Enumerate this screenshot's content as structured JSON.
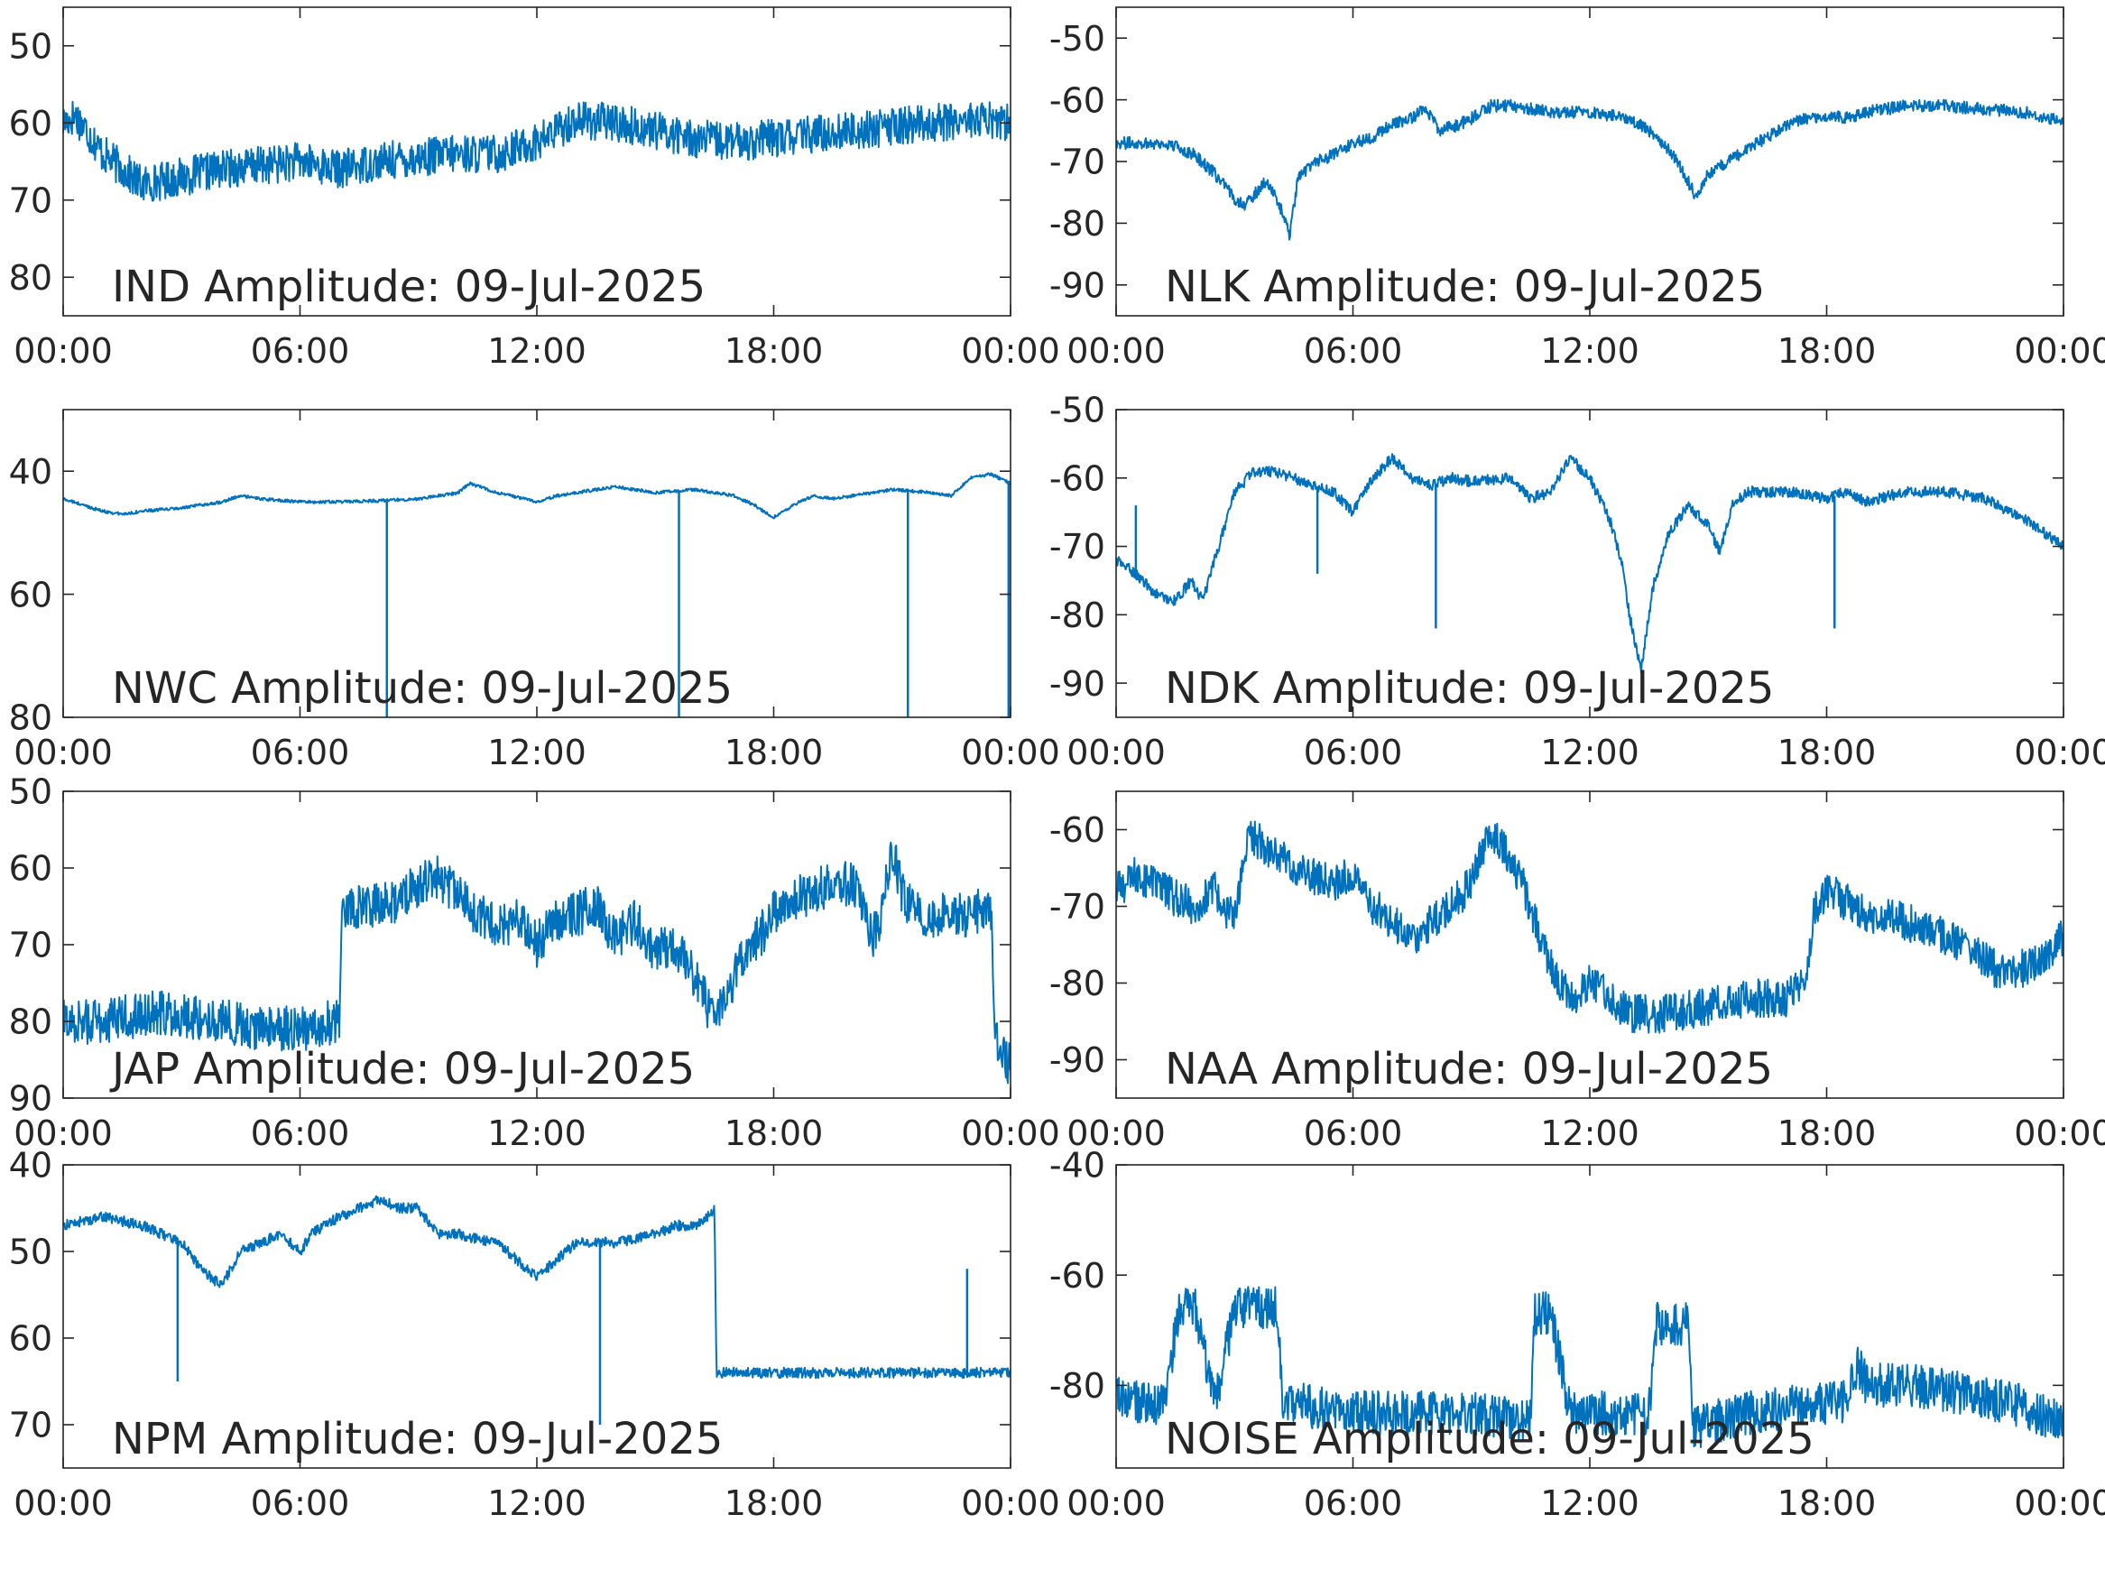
{
  "line_color": "#0072BD",
  "chart_data": [
    {
      "type": "line",
      "title": "IND Amplitude: 09-Jul-2025",
      "xlabel": "",
      "ylabel": "",
      "ylim": [
        -85,
        -45
      ],
      "yticks": [
        -50,
        -60,
        -70,
        -80
      ],
      "ytick_labels": [
        "50",
        "60",
        "70",
        "80"
      ],
      "xticks": [
        "00:00",
        "06:00",
        "12:00",
        "18:00",
        "00:00"
      ],
      "xlim_hours": [
        0,
        24
      ],
      "noise": 2.5,
      "series": [
        {
          "x": [
            0,
            0.3,
            0.6,
            1.0,
            1.5,
            2.0,
            3.0,
            4.0,
            5.0,
            6.0,
            7.0,
            8.0,
            9.0,
            10.0,
            11.0,
            12.0,
            12.5,
            13.0,
            14.0,
            15.0,
            16.0,
            17.0,
            18.0,
            19.0,
            20.0,
            21.0,
            22.0,
            23.0,
            24.0
          ],
          "values": [
            -60,
            -59,
            -61,
            -64,
            -66,
            -68,
            -67,
            -66,
            -65.5,
            -65,
            -66,
            -65,
            -64.5,
            -64,
            -64,
            -62.5,
            -61,
            -59.5,
            -60,
            -61,
            -62,
            -62.5,
            -62,
            -61.5,
            -61,
            -60.5,
            -60,
            -59.5,
            -60
          ]
        }
      ]
    },
    {
      "type": "line",
      "title": "NLK Amplitude: 09-Jul-2025",
      "xlabel": "",
      "ylabel": "",
      "ylim": [
        -95,
        -45
      ],
      "yticks": [
        -50,
        -60,
        -70,
        -80,
        -90
      ],
      "ytick_labels": [
        "-50",
        "-60",
        "-70",
        "-80",
        "-90"
      ],
      "xticks": [
        "00:00",
        "06:00",
        "12:00",
        "18:00",
        "00:00"
      ],
      "xlim_hours": [
        0,
        24
      ],
      "noise": 1.0,
      "series": [
        {
          "x": [
            0,
            0.5,
            1.0,
            1.5,
            2.0,
            2.5,
            3.0,
            3.3,
            3.8,
            4.2,
            4.4,
            4.6,
            5.0,
            5.5,
            6.0,
            6.5,
            7.0,
            7.5,
            7.8,
            8.2,
            8.7,
            9.0,
            9.5,
            10.0,
            11.0,
            12.0,
            13.0,
            13.5,
            14.0,
            14.4,
            14.7,
            15.0,
            15.5,
            16.0,
            16.5,
            17.0,
            17.5,
            18.0,
            18.5,
            19.0,
            20.0,
            21.0,
            22.0,
            23.0,
            24.0
          ],
          "values": [
            -67,
            -67,
            -67,
            -67.5,
            -69,
            -72,
            -76,
            -77,
            -73,
            -78,
            -82,
            -73,
            -70,
            -69,
            -67,
            -66,
            -64,
            -63,
            -61,
            -65,
            -64,
            -63,
            -61,
            -61,
            -62,
            -62,
            -63,
            -65,
            -68,
            -72,
            -76,
            -72,
            -70,
            -68,
            -66,
            -64,
            -63,
            -62.5,
            -63,
            -62,
            -61,
            -61,
            -61.5,
            -62,
            -63.5
          ]
        }
      ]
    },
    {
      "type": "line",
      "title": "NWC Amplitude: 09-Jul-2025",
      "xlabel": "",
      "ylabel": "",
      "ylim": [
        -80,
        -30
      ],
      "yticks": [
        -40,
        -60,
        -80
      ],
      "ytick_labels": [
        "40",
        "60",
        "80"
      ],
      "xticks": [
        "00:00",
        "06:00",
        "12:00",
        "18:00",
        "00:00"
      ],
      "xlim_hours": [
        0,
        24
      ],
      "noise": 0.25,
      "series": [
        {
          "x": [
            0,
            0.5,
            1.0,
            1.5,
            2.0,
            3.0,
            4.0,
            4.5,
            5.0,
            6.0,
            7.0,
            8.0,
            9.0,
            10.0,
            10.3,
            11.0,
            12.0,
            12.5,
            13.0,
            14.0,
            15.0,
            16.0,
            17.0,
            17.5,
            18.0,
            18.5,
            19.0,
            19.5,
            20.0,
            21.0,
            22.0,
            22.5,
            23.0,
            23.5,
            24.0
          ],
          "values": [
            -44.5,
            -45.5,
            -46.5,
            -47,
            -46.5,
            -46,
            -45,
            -44,
            -44.5,
            -45,
            -45,
            -44.8,
            -44.5,
            -43.5,
            -42,
            -43.5,
            -45,
            -44,
            -43.5,
            -42.5,
            -43.5,
            -43,
            -44,
            -45.5,
            -47.5,
            -45.5,
            -44,
            -44.5,
            -44,
            -43,
            -43.5,
            -44,
            -41,
            -40.5,
            -42
          ]
        }
      ],
      "spikes": [
        {
          "x": 8.2,
          "bottom": -80
        },
        {
          "x": 15.6,
          "bottom": -80
        },
        {
          "x": 21.4,
          "bottom": -80
        },
        {
          "x": 23.95,
          "bottom": -80
        }
      ]
    },
    {
      "type": "line",
      "title": "NDK Amplitude: 09-Jul-2025",
      "xlabel": "",
      "ylabel": "",
      "ylim": [
        -95,
        -50
      ],
      "yticks": [
        -50,
        -60,
        -70,
        -80,
        -90
      ],
      "ytick_labels": [
        "-50",
        "-60",
        "-70",
        "-80",
        "-90"
      ],
      "xticks": [
        "00:00",
        "06:00",
        "12:00",
        "18:00",
        "00:00"
      ],
      "xlim_hours": [
        0,
        24
      ],
      "noise": 0.8,
      "series": [
        {
          "x": [
            0,
            0.5,
            1.0,
            1.5,
            1.9,
            2.2,
            2.5,
            3.0,
            3.5,
            4.0,
            5.0,
            5.5,
            6.0,
            6.5,
            7.0,
            7.5,
            8.0,
            8.5,
            9.0,
            10.0,
            10.5,
            11.0,
            11.5,
            12.0,
            12.5,
            12.8,
            13.0,
            13.3,
            13.6,
            14.0,
            14.5,
            15.0,
            15.3,
            15.6,
            16.0,
            17.0,
            18.0,
            18.5,
            19.0,
            20.0,
            21.0,
            22.0,
            23.0,
            24.0
          ],
          "values": [
            -72,
            -74,
            -77,
            -78,
            -75,
            -78,
            -72,
            -62,
            -59,
            -59,
            -61,
            -62,
            -65,
            -60,
            -57,
            -60,
            -61,
            -60,
            -60.5,
            -60,
            -63,
            -62,
            -57,
            -60,
            -66,
            -72,
            -80,
            -88,
            -76,
            -68,
            -64,
            -67,
            -71,
            -64,
            -62,
            -62,
            -63,
            -62,
            -63.5,
            -62,
            -62,
            -63,
            -66,
            -70
          ]
        }
      ],
      "spikes": [
        {
          "x": 0.5,
          "bottom": -74,
          "up": -64
        },
        {
          "x": 5.1,
          "bottom": -74
        },
        {
          "x": 8.1,
          "bottom": -82
        },
        {
          "x": 18.2,
          "bottom": -82
        }
      ]
    },
    {
      "type": "line",
      "title": "JAP Amplitude: 09-Jul-2025",
      "xlabel": "",
      "ylabel": "",
      "ylim": [
        -90,
        -50
      ],
      "yticks": [
        -50,
        -60,
        -70,
        -80,
        -90
      ],
      "ytick_labels": [
        "50",
        "60",
        "70",
        "80",
        "90"
      ],
      "xticks": [
        "00:00",
        "06:00",
        "12:00",
        "18:00",
        "00:00"
      ],
      "xlim_hours": [
        0,
        24
      ],
      "noise": 3.0,
      "series": [
        {
          "x": [
            0,
            1.0,
            2.0,
            3.0,
            4.0,
            5.0,
            6.0,
            7.0,
            7.05,
            7.5,
            8.0,
            8.5,
            9.0,
            9.5,
            10.0,
            10.5,
            11.0,
            11.5,
            12.0,
            12.5,
            13.0,
            13.5,
            14.0,
            14.5,
            15.0,
            15.5,
            16.0,
            16.5,
            17.0,
            17.5,
            18.0,
            18.5,
            19.0,
            19.5,
            20.0,
            20.5,
            20.7,
            21.0,
            21.3,
            21.6,
            22.0,
            22.5,
            23.0,
            23.5,
            23.6,
            24.0
          ],
          "values": [
            -80,
            -80,
            -79,
            -79,
            -80,
            -81,
            -81,
            -80,
            -65,
            -65,
            -65,
            -64,
            -62,
            -61,
            -64,
            -66,
            -68,
            -67,
            -70,
            -67,
            -66,
            -65,
            -69,
            -67,
            -71,
            -70,
            -74,
            -80,
            -74,
            -70,
            -66,
            -64,
            -63,
            -62,
            -62,
            -69,
            -67,
            -58,
            -64,
            -66,
            -66,
            -66,
            -66,
            -65,
            -82,
            -86
          ]
        }
      ]
    },
    {
      "type": "line",
      "title": "NAA Amplitude: 09-Jul-2025",
      "xlabel": "",
      "ylabel": "",
      "ylim": [
        -95,
        -55
      ],
      "yticks": [
        -60,
        -70,
        -80,
        -90
      ],
      "ytick_labels": [
        "-60",
        "-70",
        "-80",
        "-90"
      ],
      "xticks": [
        "00:00",
        "06:00",
        "12:00",
        "18:00",
        "00:00"
      ],
      "xlim_hours": [
        0,
        24
      ],
      "noise": 2.5,
      "series": [
        {
          "x": [
            0,
            0.5,
            1.0,
            1.5,
            2.0,
            2.5,
            3.0,
            3.3,
            3.5,
            4.0,
            4.5,
            5.0,
            5.5,
            6.0,
            6.5,
            7.0,
            7.5,
            8.0,
            8.5,
            9.0,
            9.5,
            10.0,
            10.3,
            10.6,
            11.0,
            11.5,
            12.0,
            12.5,
            13.0,
            14.0,
            15.0,
            16.0,
            17.0,
            17.5,
            17.7,
            18.0,
            19.0,
            20.0,
            21.0,
            22.0,
            22.5,
            23.0,
            23.5,
            24.0
          ],
          "values": [
            -68,
            -66,
            -67,
            -69,
            -70,
            -68,
            -72,
            -62,
            -61,
            -63,
            -65,
            -66,
            -67,
            -66,
            -70,
            -72,
            -74,
            -72,
            -70,
            -67,
            -60,
            -64,
            -67,
            -72,
            -78,
            -82,
            -80,
            -82,
            -84,
            -84,
            -83,
            -82,
            -82,
            -79,
            -70,
            -68,
            -71,
            -72,
            -74,
            -77,
            -79,
            -78,
            -77,
            -74
          ]
        }
      ]
    },
    {
      "type": "line",
      "title": "NPM Amplitude: 09-Jul-2025",
      "xlabel": "",
      "ylabel": "",
      "ylim": [
        -75,
        -40
      ],
      "yticks": [
        -40,
        -50,
        -60,
        -70
      ],
      "ytick_labels": [
        "40",
        "50",
        "60",
        "70"
      ],
      "xticks": [
        "00:00",
        "06:00",
        "12:00",
        "18:00",
        "00:00"
      ],
      "xlim_hours": [
        0,
        24
      ],
      "noise": 0.6,
      "series": [
        {
          "x": [
            0,
            0.5,
            1.0,
            2.0,
            3.0,
            3.5,
            4.0,
            4.5,
            5.0,
            5.5,
            6.0,
            6.3,
            6.6,
            7.0,
            7.5,
            8.0,
            8.5,
            9.0,
            9.3,
            9.5,
            10.0,
            11.0,
            11.5,
            12.0,
            12.5,
            13.0,
            14.0,
            15.0,
            15.5,
            16.0,
            16.3,
            16.5,
            16.55,
            17.0,
            18.0,
            19.0,
            20.0,
            21.0,
            22.0,
            23.0,
            24.0
          ],
          "values": [
            -47,
            -46.5,
            -46,
            -47,
            -49,
            -52,
            -54,
            -50,
            -49,
            -48,
            -50,
            -48,
            -47,
            -46,
            -45,
            -44,
            -45,
            -45,
            -47,
            -48,
            -48,
            -49,
            -51,
            -53,
            -51,
            -49,
            -49,
            -48,
            -47,
            -47,
            -46,
            -45,
            -64,
            -64,
            -64,
            -64,
            -64,
            -64,
            -64,
            -64,
            -64
          ]
        }
      ],
      "spikes": [
        {
          "x": 2.9,
          "bottom": -65
        },
        {
          "x": 13.6,
          "bottom": -70
        },
        {
          "x": 22.9,
          "bottom": -64,
          "up": -52
        }
      ]
    },
    {
      "type": "line",
      "title": "NOISE Amplitude: 09-Jul-2025",
      "xlabel": "",
      "ylabel": "",
      "ylim": [
        -95,
        -40
      ],
      "yticks": [
        -40,
        -60,
        -80
      ],
      "ytick_labels": [
        "-40",
        "-60",
        "-80"
      ],
      "xticks": [
        "00:00",
        "06:00",
        "12:00",
        "18:00",
        "00:00"
      ],
      "xlim_hours": [
        0,
        24
      ],
      "noise": 4.0,
      "series": [
        {
          "x": [
            0,
            1.0,
            1.3,
            1.6,
            2.0,
            2.5,
            3.0,
            3.5,
            4.0,
            4.1,
            4.2,
            5.0,
            6.0,
            7.0,
            8.0,
            9.0,
            10.0,
            10.5,
            10.6,
            11.0,
            11.5,
            12.0,
            13.0,
            13.5,
            13.7,
            14.0,
            14.2,
            14.5,
            14.6,
            15.0,
            16.0,
            17.0,
            18.0,
            18.5,
            18.8,
            19.0,
            20.0,
            21.0,
            22.0,
            23.0,
            24.0
          ],
          "values": [
            -82,
            -84,
            -80,
            -66,
            -66,
            -84,
            -66,
            -66,
            -66,
            -66,
            -82,
            -84,
            -85,
            -85,
            -85,
            -85,
            -86,
            -86,
            -67,
            -67,
            -85,
            -85,
            -85,
            -85,
            -69,
            -69,
            -69,
            -69,
            -88,
            -87,
            -85,
            -84,
            -83,
            -83,
            -76,
            -80,
            -80,
            -81,
            -82,
            -84,
            -87
          ]
        }
      ]
    }
  ]
}
